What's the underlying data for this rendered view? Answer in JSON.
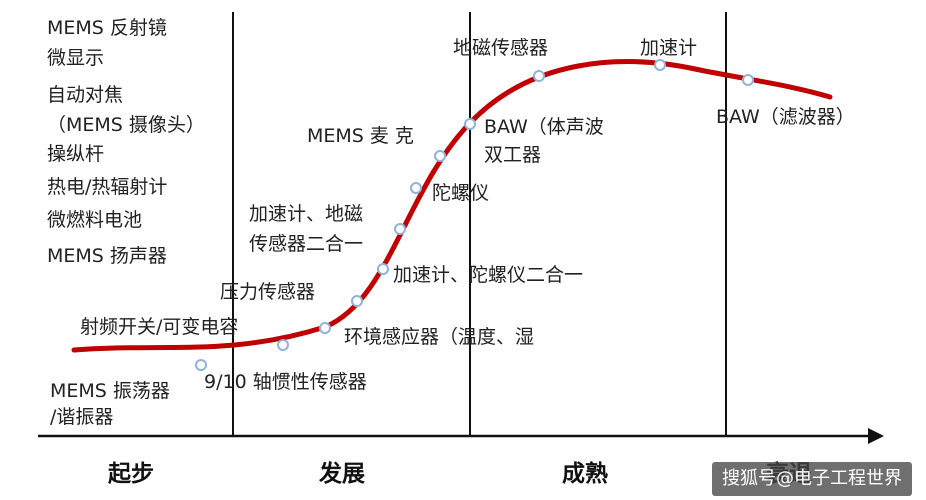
{
  "diagram": {
    "stages": [
      "起步",
      "发展",
      "成熟",
      "衰退"
    ],
    "legacy_list": [
      "MEMS 反射镜",
      "微显示",
      "自动对焦",
      "（MEMS 摄像头）",
      "操纵杆",
      "热电/热辐射计",
      "微燃料电池",
      "MEMS 扬声器"
    ],
    "labels": {
      "oscillator_l1": "MEMS 振荡器",
      "oscillator_l2": "/谐振器",
      "axis910": "9/10 轴惯性传感器",
      "rf_switch": "射频开关/可变电容",
      "env_sensor": "环境感应器（温度、湿",
      "pressure": "压力传感器",
      "accel_gyro": "加速计、陀螺仪二合一",
      "accel_mag_l1": "加速计、地磁",
      "accel_mag_l2": "传感器二合一",
      "gyro": "陀螺仪",
      "mems_mic": "MEMS  麦 克",
      "baw_l1": "BAW（体声波",
      "baw_l2": "双工器",
      "magnetometer": "地磁传感器",
      "accelerometer": "加速计",
      "baw_filter": "BAW（滤波器）"
    },
    "colors": {
      "curve": "#C00000",
      "marker_fill": "#ffffff",
      "marker_stroke": "#8fb3d9",
      "axis": "#111111"
    }
  },
  "watermark": "搜狐号@电子工程世界"
}
